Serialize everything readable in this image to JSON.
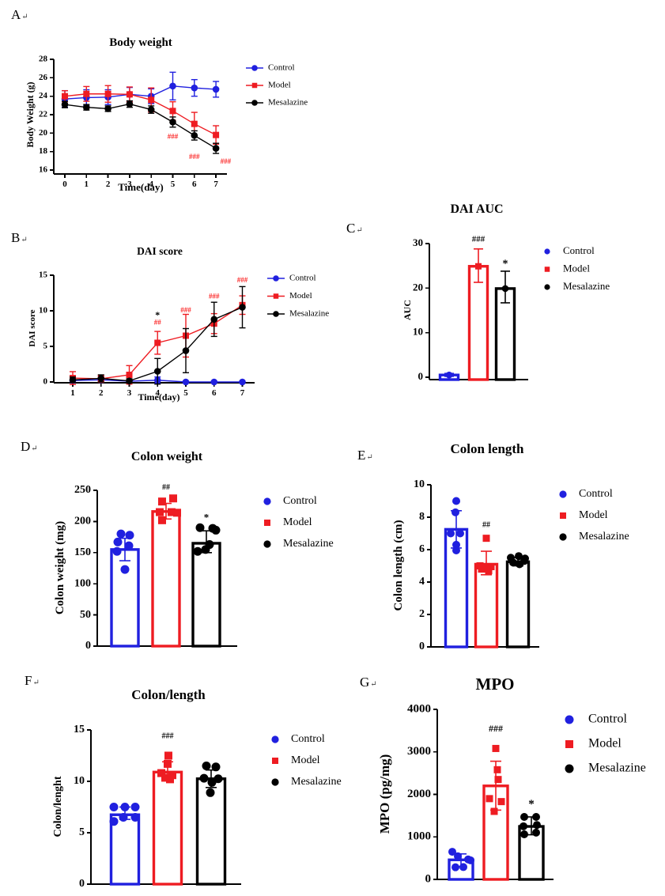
{
  "figure": {
    "background": "#ffffff"
  },
  "colors": {
    "control": "#2020df",
    "model": "#ee1c22",
    "mesalazine": "#000000",
    "significance": "#fb2a2a",
    "annotation_black": "#000000"
  },
  "cr_mark": "↵",
  "groups": [
    "Control",
    "Model",
    "Mesalazine"
  ],
  "legend_entries": [
    {
      "label": "Control",
      "group": "control",
      "marker": "circle"
    },
    {
      "label": "Model",
      "group": "model",
      "marker": "square"
    },
    {
      "label": "Mesalazine",
      "group": "mesalazine",
      "marker": "circle"
    }
  ],
  "chart_data": [
    {
      "id": "a",
      "panel_label": "A",
      "type": "line",
      "title": "Body weight",
      "xlabel": "Time(day)",
      "ylabel": "Body Weight (g)",
      "x": [
        0,
        1,
        2,
        3,
        4,
        5,
        6,
        7
      ],
      "ylim": [
        16,
        28
      ],
      "yticks": [
        16,
        18,
        20,
        22,
        24,
        26,
        28
      ],
      "series": [
        {
          "name": "Control",
          "group": "control",
          "marker": "circle",
          "values": [
            23.7,
            23.85,
            23.9,
            24.2,
            24.0,
            25.1,
            24.9,
            24.75
          ],
          "err": [
            0.9,
            0.85,
            0.8,
            0.75,
            0.8,
            1.5,
            0.9,
            0.85
          ]
        },
        {
          "name": "Model",
          "group": "model",
          "marker": "square",
          "values": [
            24.0,
            24.25,
            24.25,
            24.2,
            23.6,
            22.4,
            21.0,
            19.8
          ],
          "err": [
            0.6,
            0.8,
            0.9,
            0.8,
            1.3,
            1.0,
            1.25,
            1.0
          ]
        },
        {
          "name": "Mesalazine",
          "group": "mesalazine",
          "marker": "circle",
          "values": [
            23.1,
            22.8,
            22.65,
            23.15,
            22.55,
            21.2,
            19.75,
            18.35
          ],
          "err": [
            0.35,
            0.3,
            0.3,
            0.35,
            0.4,
            0.55,
            0.5,
            0.55
          ]
        }
      ],
      "annotations": [
        {
          "text": "###",
          "x": 5,
          "y": 19.4,
          "color": "significance"
        },
        {
          "text": "###",
          "x": 6,
          "y": 17.2,
          "color": "significance"
        },
        {
          "text": "###",
          "x": 7.45,
          "y": 16.7,
          "color": "significance"
        }
      ]
    },
    {
      "id": "b",
      "panel_label": "B",
      "type": "line",
      "title": "DAI score",
      "xlabel": "Time(day)",
      "ylabel": "DAI score",
      "x": [
        1,
        2,
        3,
        4,
        5,
        6,
        7
      ],
      "ylim": [
        0,
        15
      ],
      "yticks": [
        0,
        5,
        10,
        15
      ],
      "series": [
        {
          "name": "Control",
          "group": "control",
          "marker": "circle",
          "values": [
            0.2,
            0.3,
            0.1,
            0.25,
            0.0,
            0.0,
            0.0
          ],
          "err": [
            0.3,
            0.35,
            0.15,
            0.45,
            0.1,
            0.1,
            0.1
          ]
        },
        {
          "name": "Model",
          "group": "model",
          "marker": "square",
          "values": [
            0.55,
            0.45,
            1.0,
            5.5,
            6.5,
            8.2,
            10.8
          ],
          "err": [
            0.9,
            0.5,
            1.3,
            1.6,
            3.0,
            1.4,
            1.3
          ]
        },
        {
          "name": "Mesalazine",
          "group": "mesalazine",
          "marker": "circle",
          "values": [
            0.3,
            0.5,
            0.15,
            1.5,
            4.4,
            8.8,
            10.5
          ],
          "err": [
            0.4,
            0.5,
            0.3,
            1.8,
            3.1,
            2.4,
            2.9
          ]
        }
      ],
      "annotations": [
        {
          "text": "*",
          "x": 4,
          "y": 9.0,
          "color": "annotation_black"
        },
        {
          "text": "##",
          "x": 4,
          "y": 8.05,
          "color": "significance"
        },
        {
          "text": "###",
          "x": 5,
          "y": 9.8,
          "color": "significance"
        },
        {
          "text": "###",
          "x": 6,
          "y": 11.7,
          "color": "significance"
        },
        {
          "text": "###",
          "x": 7,
          "y": 14.0,
          "color": "significance"
        }
      ]
    },
    {
      "id": "c",
      "panel_label": "C",
      "type": "bar",
      "title": "DAI AUC",
      "ylabel": "AUC",
      "ylim": [
        0,
        30
      ],
      "yticks": [
        0,
        10,
        20,
        30
      ],
      "categories": [
        "Control",
        "Model",
        "Mesalazine"
      ],
      "cat_groups": [
        "control",
        "model",
        "mesalazine"
      ],
      "cat_markers": [
        "circle",
        "square",
        "circle"
      ],
      "values": [
        0.5,
        24.9,
        19.9
      ],
      "errors": [
        [
          0.2,
          0.85
        ],
        [
          21.3,
          28.8
        ],
        [
          16.7,
          23.8
        ]
      ],
      "top_marker": true,
      "points": null,
      "annotations": [
        {
          "text": "###",
          "cat": 1,
          "y": 30.4,
          "color": "annotation_black"
        },
        {
          "text": "*",
          "cat": 2,
          "y": 24.8,
          "color": "annotation_black"
        }
      ]
    },
    {
      "id": "d",
      "panel_label": "D",
      "type": "bar",
      "title": "Colon weight",
      "ylabel": "Colon weight (mg)",
      "ylim": [
        0,
        250
      ],
      "yticks": [
        0,
        50,
        100,
        150,
        200,
        250
      ],
      "categories": [
        "Control",
        "Model",
        "Mesalazine"
      ],
      "cat_groups": [
        "control",
        "model",
        "mesalazine"
      ],
      "cat_markers": [
        "circle",
        "square",
        "circle"
      ],
      "values": [
        155,
        216,
        165
      ],
      "errors": [
        [
          137,
          173
        ],
        [
          204,
          229
        ],
        [
          150,
          185
        ]
      ],
      "top_marker": false,
      "points": [
        [
          [
            -5,
            180
          ],
          [
            6,
            178
          ],
          [
            -9,
            167
          ],
          [
            5,
            161
          ],
          [
            -10,
            152
          ],
          [
            0,
            123
          ]
        ],
        [
          [
            -5,
            232
          ],
          [
            9,
            237
          ],
          [
            -8,
            215
          ],
          [
            7,
            215
          ],
          [
            14,
            214
          ],
          [
            -5,
            202
          ]
        ],
        [
          [
            -8,
            190
          ],
          [
            8,
            189
          ],
          [
            12,
            186
          ],
          [
            -11,
            152
          ],
          [
            -1,
            155
          ],
          [
            4,
            163
          ]
        ]
      ],
      "annotations": [
        {
          "text": "##",
          "cat": 1,
          "y": 251,
          "color": "annotation_black"
        },
        {
          "text": "*",
          "cat": 2,
          "y": 201,
          "color": "annotation_black"
        }
      ]
    },
    {
      "id": "e",
      "panel_label": "E",
      "type": "bar",
      "title": "Colon length",
      "ylabel": "Colon length (cm)",
      "ylim": [
        0,
        10
      ],
      "yticks": [
        0,
        2,
        4,
        6,
        8,
        10
      ],
      "categories": [
        "Control",
        "Model",
        "Mesalazine"
      ],
      "cat_groups": [
        "control",
        "model",
        "mesalazine"
      ],
      "cat_markers": [
        "circle",
        "square",
        "circle"
      ],
      "values": [
        7.25,
        5.1,
        5.25
      ],
      "errors": [
        [
          6.1,
          8.4
        ],
        [
          4.45,
          5.9
        ],
        [
          5.0,
          5.5
        ]
      ],
      "top_marker": false,
      "points": [
        [
          [
            0,
            9.0
          ],
          [
            -1,
            8.3
          ],
          [
            -7,
            7.0
          ],
          [
            5,
            7.0
          ],
          [
            0,
            6.3
          ],
          [
            0,
            5.95
          ]
        ],
        [
          [
            0,
            6.7
          ],
          [
            -8,
            5.0
          ],
          [
            -2,
            4.9
          ],
          [
            6,
            4.95
          ],
          [
            -6,
            4.8
          ],
          [
            3,
            4.7
          ]
        ],
        [
          [
            -9,
            5.5
          ],
          [
            1,
            5.6
          ],
          [
            9,
            5.45
          ],
          [
            -6,
            5.2
          ],
          [
            2,
            5.1
          ],
          [
            8,
            5.3
          ]
        ]
      ],
      "annotations": [
        {
          "text": "##",
          "cat": 1,
          "y": 7.4,
          "color": "annotation_black"
        }
      ]
    },
    {
      "id": "f",
      "panel_label": "F",
      "type": "bar",
      "title": "Colon/length",
      "ylabel": "Colon/lenght",
      "ylim": [
        0,
        15
      ],
      "yticks": [
        0,
        5,
        10,
        15
      ],
      "categories": [
        "Control",
        "Model",
        "Mesalazine"
      ],
      "cat_groups": [
        "control",
        "model",
        "mesalazine"
      ],
      "cat_markers": [
        "circle",
        "square",
        "circle"
      ],
      "values": [
        6.75,
        10.9,
        10.25
      ],
      "errors": [
        [
          6.3,
          7.5
        ],
        [
          10.1,
          11.9
        ],
        [
          9.4,
          11.1
        ]
      ],
      "top_marker": false,
      "points": [
        [
          [
            -14,
            7.5
          ],
          [
            0,
            7.5
          ],
          [
            13,
            7.5
          ],
          [
            -2,
            6.5
          ],
          [
            13,
            6.5
          ],
          [
            -14,
            6.1
          ]
        ],
        [
          [
            1,
            12.5
          ],
          [
            0,
            11.7
          ],
          [
            -8,
            10.8
          ],
          [
            6,
            10.6
          ],
          [
            -3,
            10.35
          ],
          [
            3,
            10.2
          ]
        ],
        [
          [
            -6,
            11.5
          ],
          [
            6,
            11.4
          ],
          [
            -9,
            10.3
          ],
          [
            9,
            10.25
          ],
          [
            1,
            9.9
          ],
          [
            -1,
            8.9
          ]
        ]
      ],
      "annotations": [
        {
          "text": "###",
          "cat": 1,
          "y": 14.2,
          "color": "annotation_black"
        }
      ]
    },
    {
      "id": "g",
      "panel_label": "G",
      "type": "bar",
      "title": "MPO",
      "ylabel": "MPO (pg/mg)",
      "ylim": [
        0,
        4000
      ],
      "yticks": [
        0,
        1000,
        2000,
        3000,
        4000
      ],
      "categories": [
        "Control",
        "Model",
        "Mesalazine"
      ],
      "cat_groups": [
        "control",
        "model",
        "mesalazine"
      ],
      "cat_markers": [
        "circle",
        "square",
        "circle"
      ],
      "values": [
        460,
        2200,
        1246
      ],
      "errors": [
        [
          300,
          600
        ],
        [
          1630,
          2780
        ],
        [
          1050,
          1470
        ]
      ],
      "top_marker": false,
      "points": [
        [
          [
            -11,
            650
          ],
          [
            -4,
            545
          ],
          [
            9,
            470
          ],
          [
            12,
            450
          ],
          [
            -7,
            285
          ],
          [
            3,
            290
          ]
        ],
        [
          [
            0,
            3080
          ],
          [
            2,
            2580
          ],
          [
            3,
            2350
          ],
          [
            -8,
            1900
          ],
          [
            7,
            1830
          ],
          [
            -2,
            1600
          ]
        ],
        [
          [
            -9,
            1470
          ],
          [
            6,
            1470
          ],
          [
            -10,
            1250
          ],
          [
            7,
            1280
          ],
          [
            -9,
            1060
          ],
          [
            6,
            1100
          ]
        ]
      ],
      "annotations": [
        {
          "text": "###",
          "cat": 1,
          "y": 3480,
          "color": "annotation_black"
        },
        {
          "text": "*",
          "cat": 2,
          "y": 1690,
          "color": "annotation_black"
        }
      ]
    }
  ]
}
